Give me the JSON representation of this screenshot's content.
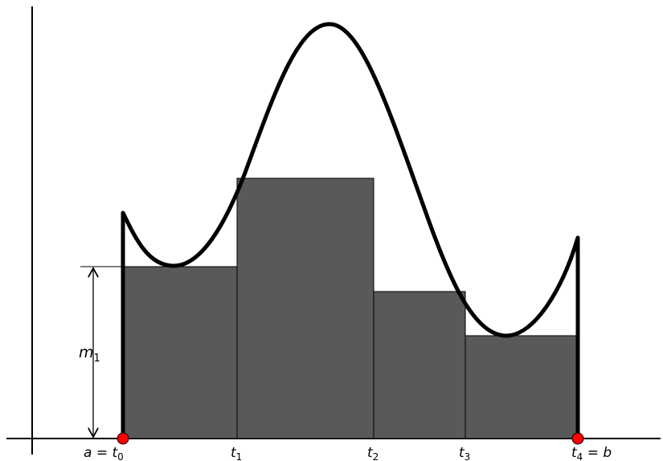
{
  "diagram": {
    "bar_fill": "#595959",
    "curve_color": "#000000",
    "endpoint_color": "#ff0000",
    "labels": {
      "t0_prefix": "a = t",
      "t0_sub": "0",
      "t1_main": "t",
      "t1_sub": "1",
      "t2_main": "t",
      "t2_sub": "2",
      "t3_main": "t",
      "t3_sub": "3",
      "t4_main": "t",
      "t4_sub": "4",
      "t4_suffix": " = b",
      "m1_main": "m",
      "m1_sub": "1"
    }
  }
}
